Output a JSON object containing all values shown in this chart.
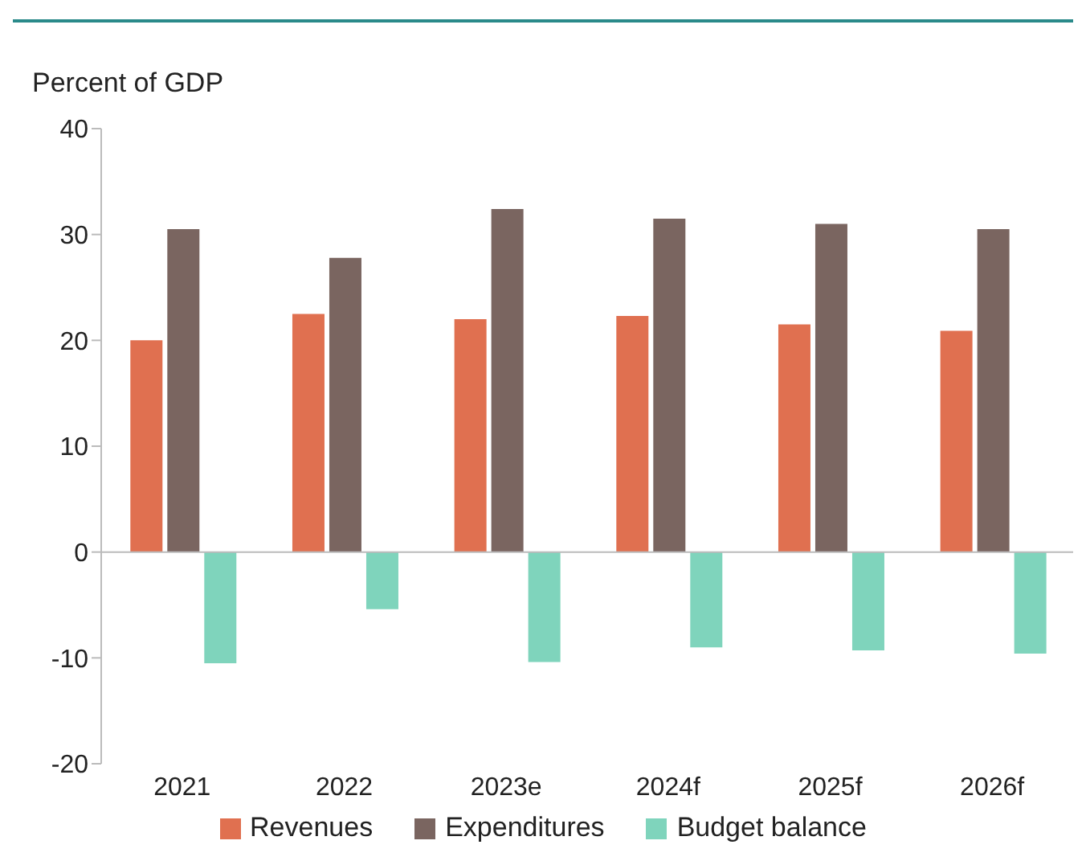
{
  "chart_data": {
    "type": "bar",
    "ylabel": "Percent of GDP",
    "categories": [
      "2021",
      "2022",
      "2023e",
      "2024f",
      "2025f",
      "2026f"
    ],
    "series": [
      {
        "name": "Revenues",
        "color": "#e07050",
        "values": [
          20.0,
          22.5,
          22.0,
          22.3,
          21.5,
          20.9
        ]
      },
      {
        "name": "Expenditures",
        "color": "#7a6560",
        "values": [
          30.5,
          27.8,
          32.4,
          31.5,
          31.0,
          30.5
        ]
      },
      {
        "name": "Budget balance",
        "color": "#7fd4bc",
        "values": [
          -10.5,
          -5.4,
          -10.4,
          -9.0,
          -9.3,
          -9.6
        ]
      }
    ],
    "ylim": [
      -20,
      40
    ],
    "yticks": [
      -20,
      -10,
      0,
      10,
      20,
      30,
      40
    ],
    "ref_lines": [
      {
        "axis": "y",
        "value": 0,
        "color": "#bbbbbb"
      }
    ],
    "legend": "bottom"
  }
}
